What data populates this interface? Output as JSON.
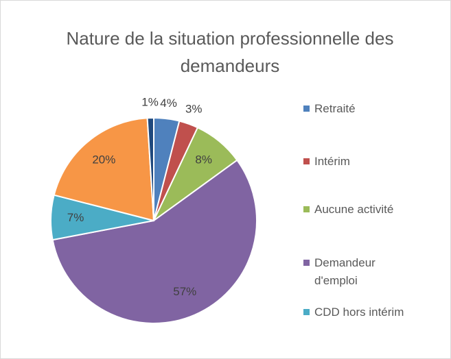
{
  "chart_data": {
    "type": "pie",
    "title": "Nature de la situation professionnelle des demandeurs",
    "categories": [
      "Retraité",
      "Intérim",
      "Aucune activité",
      "Demandeur d'emploi",
      "CDD hors intérim",
      null,
      null
    ],
    "values": [
      4,
      3,
      8,
      57,
      7,
      20,
      1
    ],
    "value_labels": [
      "4%",
      "3%",
      "8%",
      "57%",
      "7%",
      "20%",
      "1%"
    ],
    "colors": [
      "#4f81bd",
      "#c0504d",
      "#9bbb59",
      "#8064a2",
      "#4bacc6",
      "#f79646",
      "#1f497d"
    ]
  }
}
